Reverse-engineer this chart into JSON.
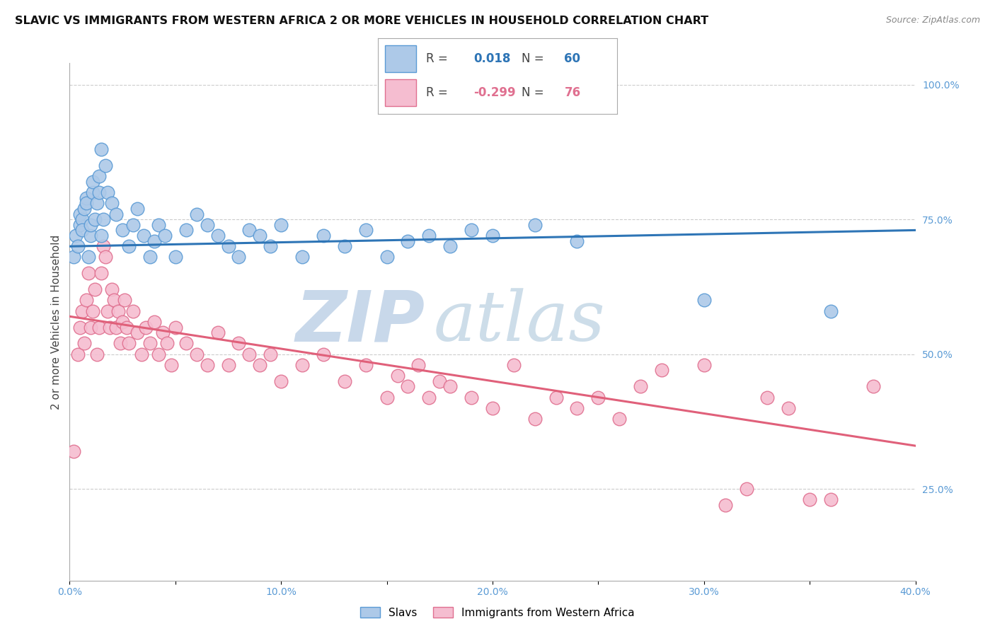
{
  "title": "SLAVIC VS IMMIGRANTS FROM WESTERN AFRICA 2 OR MORE VEHICLES IN HOUSEHOLD CORRELATION CHART",
  "source": "Source: ZipAtlas.com",
  "ylabel_left": "2 or more Vehicles in Household",
  "xmin": 0.0,
  "xmax": 0.4,
  "ymin": 0.08,
  "ymax": 1.04,
  "xticks": [
    0.0,
    0.05,
    0.1,
    0.15,
    0.2,
    0.25,
    0.3,
    0.35,
    0.4
  ],
  "xticklabels": [
    "0.0%",
    "",
    "10.0%",
    "",
    "20.0%",
    "",
    "30.0%",
    "",
    "40.0%"
  ],
  "yticks_right": [
    0.25,
    0.5,
    0.75,
    1.0
  ],
  "yticklabels_right": [
    "25.0%",
    "50.0%",
    "75.0%",
    "100.0%"
  ],
  "grid_color": "#cccccc",
  "background_color": "#ffffff",
  "slavs_color": "#adc9e8",
  "slavs_edge_color": "#5b9bd5",
  "immigrants_color": "#f5bdd0",
  "immigrants_edge_color": "#e07090",
  "slavs_line_color": "#2e75b6",
  "immigrants_line_color": "#e0607a",
  "legend_R_slavs": "0.018",
  "legend_N_slavs": "60",
  "legend_R_immigrants": "-0.299",
  "legend_N_immigrants": "76",
  "slavs_label": "Slavs",
  "immigrants_label": "Immigrants from Western Africa",
  "watermark_zip": "ZIP",
  "watermark_atlas": "atlas",
  "watermark_color": "#c8d8ea",
  "title_fontsize": 11.5,
  "axis_label_fontsize": 11,
  "tick_fontsize": 10,
  "slavs_x": [
    0.002,
    0.003,
    0.004,
    0.005,
    0.005,
    0.006,
    0.006,
    0.007,
    0.008,
    0.008,
    0.009,
    0.01,
    0.01,
    0.011,
    0.011,
    0.012,
    0.013,
    0.014,
    0.014,
    0.015,
    0.015,
    0.016,
    0.017,
    0.018,
    0.02,
    0.022,
    0.025,
    0.028,
    0.03,
    0.032,
    0.035,
    0.038,
    0.04,
    0.042,
    0.045,
    0.05,
    0.055,
    0.06,
    0.065,
    0.07,
    0.075,
    0.08,
    0.085,
    0.09,
    0.095,
    0.1,
    0.11,
    0.12,
    0.13,
    0.14,
    0.15,
    0.16,
    0.17,
    0.18,
    0.19,
    0.2,
    0.22,
    0.24,
    0.3,
    0.36
  ],
  "slavs_y": [
    0.68,
    0.72,
    0.7,
    0.74,
    0.76,
    0.75,
    0.73,
    0.77,
    0.79,
    0.78,
    0.68,
    0.72,
    0.74,
    0.8,
    0.82,
    0.75,
    0.78,
    0.8,
    0.83,
    0.88,
    0.72,
    0.75,
    0.85,
    0.8,
    0.78,
    0.76,
    0.73,
    0.7,
    0.74,
    0.77,
    0.72,
    0.68,
    0.71,
    0.74,
    0.72,
    0.68,
    0.73,
    0.76,
    0.74,
    0.72,
    0.7,
    0.68,
    0.73,
    0.72,
    0.7,
    0.74,
    0.68,
    0.72,
    0.7,
    0.73,
    0.68,
    0.71,
    0.72,
    0.7,
    0.73,
    0.72,
    0.74,
    0.71,
    0.6,
    0.58
  ],
  "immigrants_x": [
    0.002,
    0.004,
    0.005,
    0.006,
    0.007,
    0.008,
    0.009,
    0.01,
    0.011,
    0.012,
    0.013,
    0.014,
    0.015,
    0.016,
    0.017,
    0.018,
    0.019,
    0.02,
    0.021,
    0.022,
    0.023,
    0.024,
    0.025,
    0.026,
    0.027,
    0.028,
    0.03,
    0.032,
    0.034,
    0.036,
    0.038,
    0.04,
    0.042,
    0.044,
    0.046,
    0.048,
    0.05,
    0.055,
    0.06,
    0.065,
    0.07,
    0.075,
    0.08,
    0.085,
    0.09,
    0.095,
    0.1,
    0.11,
    0.12,
    0.13,
    0.14,
    0.15,
    0.155,
    0.16,
    0.165,
    0.17,
    0.175,
    0.18,
    0.19,
    0.2,
    0.21,
    0.22,
    0.23,
    0.24,
    0.25,
    0.26,
    0.27,
    0.28,
    0.3,
    0.31,
    0.32,
    0.33,
    0.34,
    0.35,
    0.36,
    0.38
  ],
  "immigrants_y": [
    0.32,
    0.5,
    0.55,
    0.58,
    0.52,
    0.6,
    0.65,
    0.55,
    0.58,
    0.62,
    0.5,
    0.55,
    0.65,
    0.7,
    0.68,
    0.58,
    0.55,
    0.62,
    0.6,
    0.55,
    0.58,
    0.52,
    0.56,
    0.6,
    0.55,
    0.52,
    0.58,
    0.54,
    0.5,
    0.55,
    0.52,
    0.56,
    0.5,
    0.54,
    0.52,
    0.48,
    0.55,
    0.52,
    0.5,
    0.48,
    0.54,
    0.48,
    0.52,
    0.5,
    0.48,
    0.5,
    0.45,
    0.48,
    0.5,
    0.45,
    0.48,
    0.42,
    0.46,
    0.44,
    0.48,
    0.42,
    0.45,
    0.44,
    0.42,
    0.4,
    0.48,
    0.38,
    0.42,
    0.4,
    0.42,
    0.38,
    0.44,
    0.47,
    0.48,
    0.22,
    0.25,
    0.42,
    0.4,
    0.23,
    0.23,
    0.44
  ],
  "slavs_line_x": [
    0.0,
    0.4
  ],
  "slavs_line_y": [
    0.7,
    0.73
  ],
  "immigrants_line_x": [
    0.0,
    0.4
  ],
  "immigrants_line_y": [
    0.57,
    0.33
  ]
}
